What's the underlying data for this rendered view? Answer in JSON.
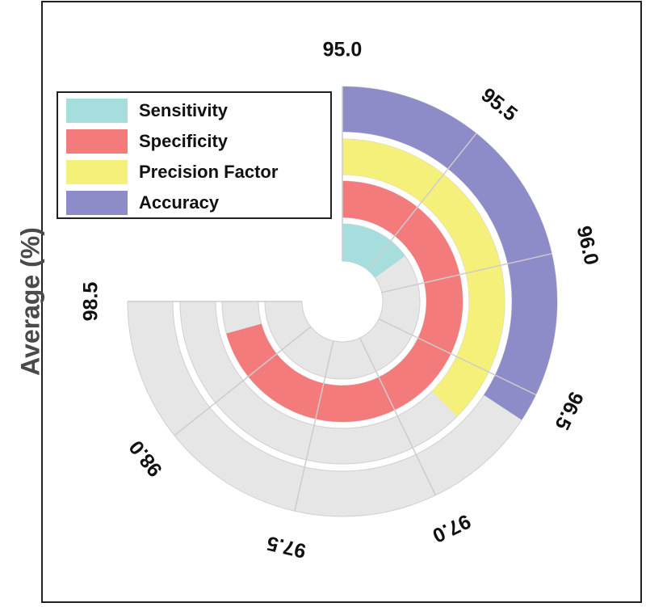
{
  "chart_data": {
    "type": "radial-bar",
    "ylabel": "Average (%)",
    "axis": {
      "min": 95.0,
      "max": 98.5,
      "ticks": [
        95.0,
        95.5,
        96.0,
        96.5,
        97.0,
        97.5,
        98.0,
        98.5
      ],
      "tick_labels": [
        "95.0",
        "95.5",
        "96.0",
        "96.5",
        "97.0",
        "97.5",
        "98.0",
        "98.5"
      ]
    },
    "grid": true,
    "legend_position": "top-left",
    "series": [
      {
        "name": "Sensitivity",
        "value": 95.7,
        "color": "#a6dede"
      },
      {
        "name": "Specificity",
        "value": 98.3,
        "color": "#f47b7b"
      },
      {
        "name": "Precision Factor",
        "value": 96.75,
        "color": "#f5f07a"
      },
      {
        "name": "Accuracy",
        "value": 96.6,
        "color": "#8d8cc8"
      }
    ],
    "track_color": "#e6e6e6"
  }
}
